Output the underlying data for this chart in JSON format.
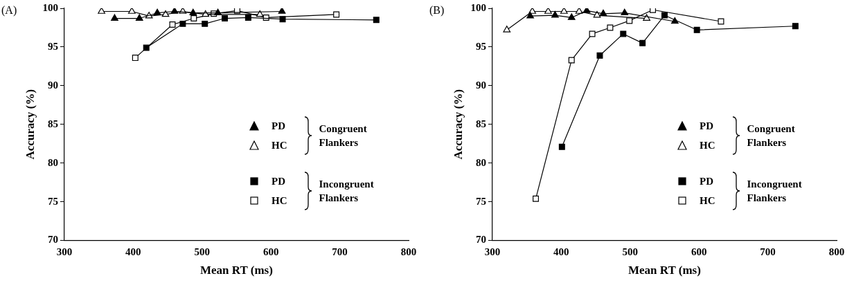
{
  "chart_data": [
    {
      "type": "line",
      "title": "(A)",
      "xlabel": "Mean RT (ms)",
      "ylabel": "Accuracy (%)",
      "xlim": [
        300,
        800
      ],
      "xticks": [
        300,
        400,
        500,
        600,
        700,
        800
      ],
      "ylim": [
        70,
        100
      ],
      "yticks": [
        70,
        75,
        80,
        85,
        90,
        95,
        100
      ],
      "legend": "right",
      "annotations": [
        "Congruent Flankers",
        "Incongruent Flankers"
      ],
      "series": [
        {
          "name": "PD",
          "color": "#000000",
          "marker": "triangle",
          "x": [
            373,
            409,
            435,
            460,
            487,
            523,
            616
          ],
          "values": [
            98.7,
            98.7,
            99.4,
            99.6,
            99.4,
            99.4,
            99.6
          ]
        },
        {
          "name": "HC",
          "color": "#ffffff",
          "marker": "triangle",
          "x": [
            354,
            398,
            423,
            447,
            472,
            505,
            584
          ],
          "values": [
            99.6,
            99.6,
            99.0,
            99.2,
            99.6,
            99.2,
            99.2
          ]
        },
        {
          "name": "PD",
          "color": "#000000",
          "marker": "square",
          "x": [
            419,
            472,
            504,
            533,
            567,
            617,
            753
          ],
          "values": [
            94.9,
            98.0,
            98.0,
            98.7,
            98.8,
            98.6,
            98.5
          ]
        },
        {
          "name": "HC",
          "color": "#ffffff",
          "marker": "square",
          "x": [
            403,
            457,
            488,
            517,
            551,
            593,
            695
          ],
          "values": [
            93.6,
            97.9,
            98.7,
            99.3,
            99.7,
            98.8,
            99.2
          ]
        }
      ]
    },
    {
      "type": "line",
      "title": "(B)",
      "xlabel": "Mean RT (ms)",
      "ylabel": "Accuracy (%)",
      "xlim": [
        300,
        800
      ],
      "xticks": [
        300,
        400,
        500,
        600,
        700,
        800
      ],
      "ylim": [
        70,
        100
      ],
      "yticks": [
        70,
        75,
        80,
        85,
        90,
        95,
        100
      ],
      "legend": "right",
      "annotations": [
        "Congruent Flankers",
        "Incongruent Flankers"
      ],
      "series": [
        {
          "name": "PD",
          "color": "#000000",
          "marker": "triangle",
          "x": [
            355,
            391,
            415,
            437,
            461,
            492,
            565
          ],
          "values": [
            99.0,
            99.1,
            98.8,
            99.7,
            99.3,
            99.4,
            98.3
          ]
        },
        {
          "name": "HC",
          "color": "#ffffff",
          "marker": "triangle",
          "x": [
            321,
            358,
            381,
            404,
            426,
            452,
            524
          ],
          "values": [
            97.2,
            99.6,
            99.6,
            99.6,
            99.6,
            99.1,
            98.7
          ]
        },
        {
          "name": "PD",
          "color": "#000000",
          "marker": "square",
          "x": [
            401,
            456,
            490,
            518,
            550,
            597,
            740
          ],
          "values": [
            82.1,
            93.9,
            96.7,
            95.5,
            99.1,
            97.2,
            97.7
          ]
        },
        {
          "name": "HC",
          "color": "#ffffff",
          "marker": "square",
          "x": [
            363,
            415,
            445,
            471,
            499,
            533,
            632
          ],
          "values": [
            75.4,
            93.3,
            96.7,
            97.5,
            98.4,
            99.8,
            98.3
          ]
        }
      ]
    }
  ]
}
